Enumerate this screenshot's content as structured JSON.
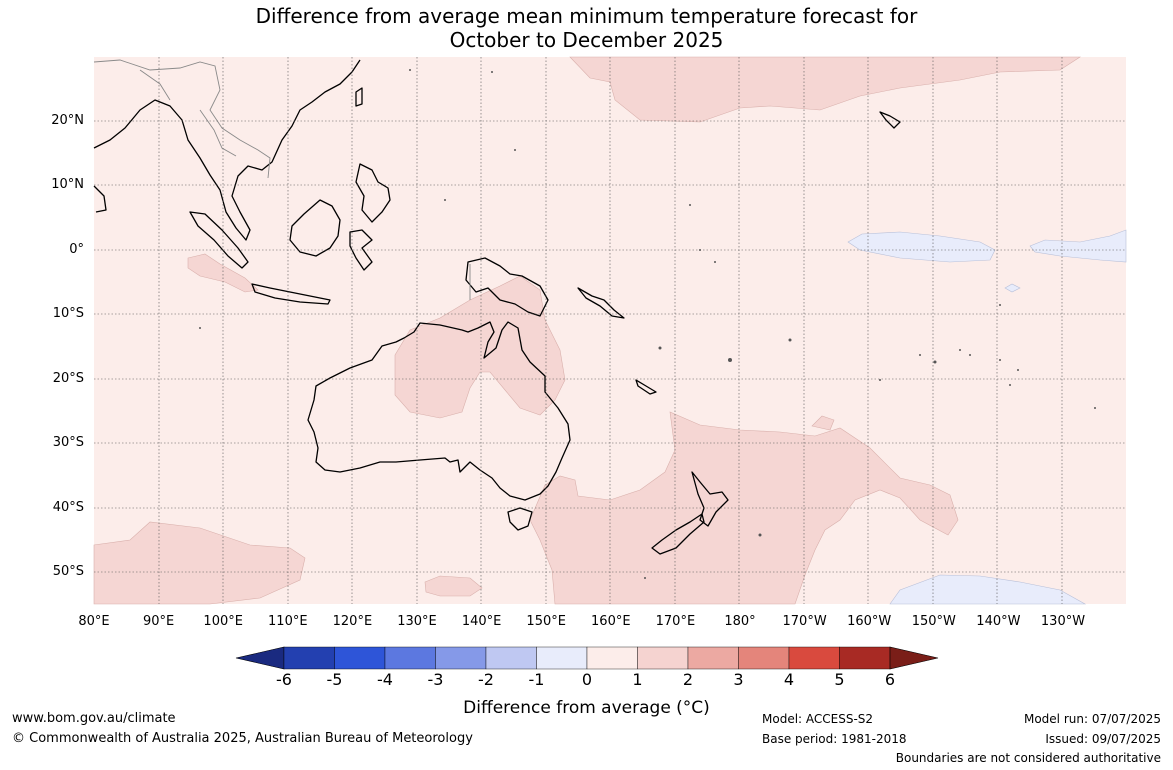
{
  "title_line1": "Difference from average mean minimum temperature forecast for",
  "title_line2": "October to December 2025",
  "lat_labels": [
    "20°N",
    "10°N",
    "0°",
    "10°S",
    "20°S",
    "30°S",
    "40°S",
    "50°S"
  ],
  "lon_labels": [
    "80°E",
    "90°E",
    "100°E",
    "110°E",
    "120°E",
    "130°E",
    "140°E",
    "150°E",
    "160°E",
    "170°E",
    "180°",
    "170°W",
    "160°W",
    "150°W",
    "140°W",
    "130°W"
  ],
  "colorbar": {
    "label": "Difference from average (°C)",
    "ticks": [
      "-6",
      "-5",
      "-4",
      "-3",
      "-2",
      "-1",
      "0",
      "1",
      "2",
      "3",
      "4",
      "5",
      "6"
    ],
    "colors": [
      "#1a2a80",
      "#2340b0",
      "#2e55d8",
      "#5c78e0",
      "#8599e8",
      "#bfc8f2",
      "#e8ecfb",
      "#fcedea",
      "#f5d3d0",
      "#eca9a2",
      "#e4857b",
      "#d94a3e",
      "#a82a24",
      "#7a1e18"
    ]
  },
  "footer": {
    "website": "www.bom.gov.au/climate",
    "copyright": "© Commonwealth of Australia 2025, Australian Bureau of Meteorology",
    "model": "Model: ACCESS-S2",
    "base_period": "Base period: 1981-2018",
    "model_run": "Model run: 07/07/2025",
    "issued": "Issued: 09/07/2025",
    "disclaimer": "Boundaries are not considered authoritative"
  }
}
